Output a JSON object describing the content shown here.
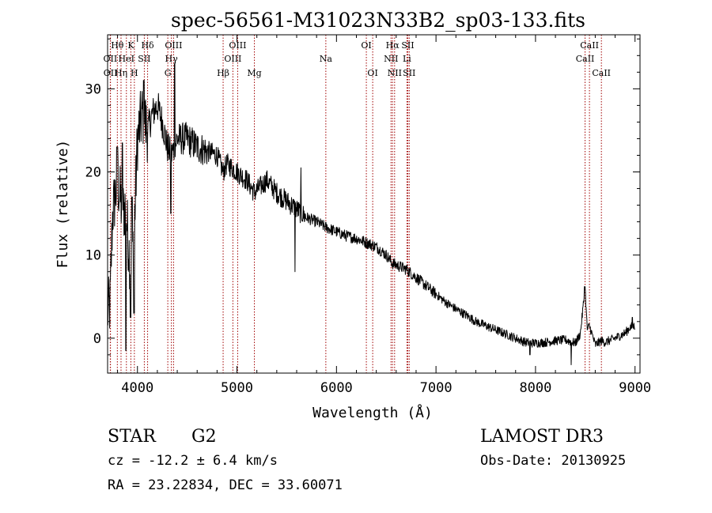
{
  "chart_data": {
    "type": "line",
    "title": "spec-56561-M31023N33B2_sp03-133.fits",
    "xlabel": "Wavelength (Å)",
    "ylabel": "Flux (relative)",
    "xlim": [
      3700,
      9050
    ],
    "ylim": [
      -4.2,
      36.5
    ],
    "x_ticks": [
      4000,
      5000,
      6000,
      7000,
      8000,
      9000
    ],
    "y_ticks": [
      0,
      10,
      20,
      30
    ],
    "grid": false,
    "series": [
      {
        "name": "spectrum",
        "trend_points": [
          [
            3700,
            3
          ],
          [
            3725,
            4
          ],
          [
            3750,
            15
          ],
          [
            3800,
            19
          ],
          [
            3850,
            15
          ],
          [
            3880,
            16
          ],
          [
            3933,
            8
          ],
          [
            3968,
            13
          ],
          [
            4000,
            24
          ],
          [
            4050,
            27
          ],
          [
            4102,
            25
          ],
          [
            4150,
            27
          ],
          [
            4200,
            28
          ],
          [
            4250,
            26
          ],
          [
            4300,
            23
          ],
          [
            4340,
            22
          ],
          [
            4400,
            24
          ],
          [
            4500,
            24
          ],
          [
            4600,
            23
          ],
          [
            4700,
            22.5
          ],
          [
            4800,
            22
          ],
          [
            4861,
            20
          ],
          [
            4900,
            21
          ],
          [
            5000,
            20
          ],
          [
            5100,
            19
          ],
          [
            5175,
            17.5
          ],
          [
            5300,
            19
          ],
          [
            5400,
            17.5
          ],
          [
            5500,
            16.5
          ],
          [
            5600,
            15.5
          ],
          [
            5700,
            14.5
          ],
          [
            5800,
            14
          ],
          [
            5900,
            13.3
          ],
          [
            6000,
            12.8
          ],
          [
            6100,
            12.3
          ],
          [
            6200,
            12
          ],
          [
            6300,
            11.5
          ],
          [
            6400,
            11
          ],
          [
            6500,
            10
          ],
          [
            6563,
            9
          ],
          [
            6600,
            8.8
          ],
          [
            6700,
            8.3
          ],
          [
            6800,
            7.3
          ],
          [
            6900,
            6.3
          ],
          [
            7000,
            5.3
          ],
          [
            7100,
            4.3
          ],
          [
            7200,
            3.5
          ],
          [
            7300,
            2.8
          ],
          [
            7400,
            2
          ],
          [
            7500,
            1.5
          ],
          [
            7600,
            1
          ],
          [
            7700,
            0.5
          ],
          [
            7800,
            0
          ],
          [
            7900,
            -0.5
          ],
          [
            8000,
            -0.6
          ],
          [
            8100,
            -0.5
          ],
          [
            8200,
            -0.3
          ],
          [
            8300,
            -0.2
          ],
          [
            8400,
            -0.6
          ],
          [
            8450,
            0.5
          ],
          [
            8498,
            6
          ],
          [
            8520,
            1
          ],
          [
            8542,
            1.5
          ],
          [
            8600,
            -0.8
          ],
          [
            8662,
            -0.3
          ],
          [
            8700,
            -0.5
          ],
          [
            8800,
            0
          ],
          [
            8900,
            0.6
          ],
          [
            8950,
            1.3
          ],
          [
            9000,
            1.5
          ]
        ]
      }
    ],
    "lines": [
      {
        "label": "Hθ",
        "wl": 3798,
        "row": 0
      },
      {
        "label": "OII",
        "wl": 3727,
        "row": 1
      },
      {
        "label": "OII",
        "wl": 3729,
        "row": 2
      },
      {
        "label": "Hη",
        "wl": 3835,
        "row": 2
      },
      {
        "label": "HeI",
        "wl": 3889,
        "row": 1
      },
      {
        "label": "K",
        "wl": 3934,
        "row": 0
      },
      {
        "label": "SII",
        "wl": 4069,
        "row": 1
      },
      {
        "label": "H",
        "wl": 3969,
        "row": 2
      },
      {
        "label": "Hδ",
        "wl": 4102,
        "row": 0
      },
      {
        "label": "OIII",
        "wl": 4363,
        "row": 0
      },
      {
        "label": "Hγ",
        "wl": 4341,
        "row": 1
      },
      {
        "label": "G",
        "wl": 4305,
        "row": 2
      },
      {
        "label": "OIII",
        "wl": 5007,
        "row": 0
      },
      {
        "label": "OIII",
        "wl": 4959,
        "row": 1
      },
      {
        "label": "Hβ",
        "wl": 4861,
        "row": 2
      },
      {
        "label": "Mg",
        "wl": 5175,
        "row": 2
      },
      {
        "label": "Na",
        "wl": 5893,
        "row": 1
      },
      {
        "label": "OI",
        "wl": 6300,
        "row": 0
      },
      {
        "label": "OI",
        "wl": 6364,
        "row": 2
      },
      {
        "label": "Hα",
        "wl": 6563,
        "row": 0
      },
      {
        "label": "NII",
        "wl": 6548,
        "row": 1
      },
      {
        "label": "NII",
        "wl": 6584,
        "row": 2
      },
      {
        "label": "SII",
        "wl": 6717,
        "row": 0
      },
      {
        "label": "Li",
        "wl": 6708,
        "row": 1
      },
      {
        "label": "SII",
        "wl": 6731,
        "row": 2
      },
      {
        "label": "CaII",
        "wl": 8542,
        "row": 0
      },
      {
        "label": "CaII",
        "wl": 8498,
        "row": 1
      },
      {
        "label": "CaII",
        "wl": 8662,
        "row": 2
      }
    ]
  },
  "info": {
    "class": "STAR",
    "subclass": "G2",
    "redshift": "cz = -12.2 ± 6.4 km/s",
    "coords": "RA =  23.22834, DEC =  33.60071",
    "survey": "LAMOST DR3",
    "obs_date": "Obs-Date: 20130925"
  },
  "colors": {
    "line_marker": "#a00000",
    "spectrum": "#000000",
    "axes": "#000000"
  }
}
